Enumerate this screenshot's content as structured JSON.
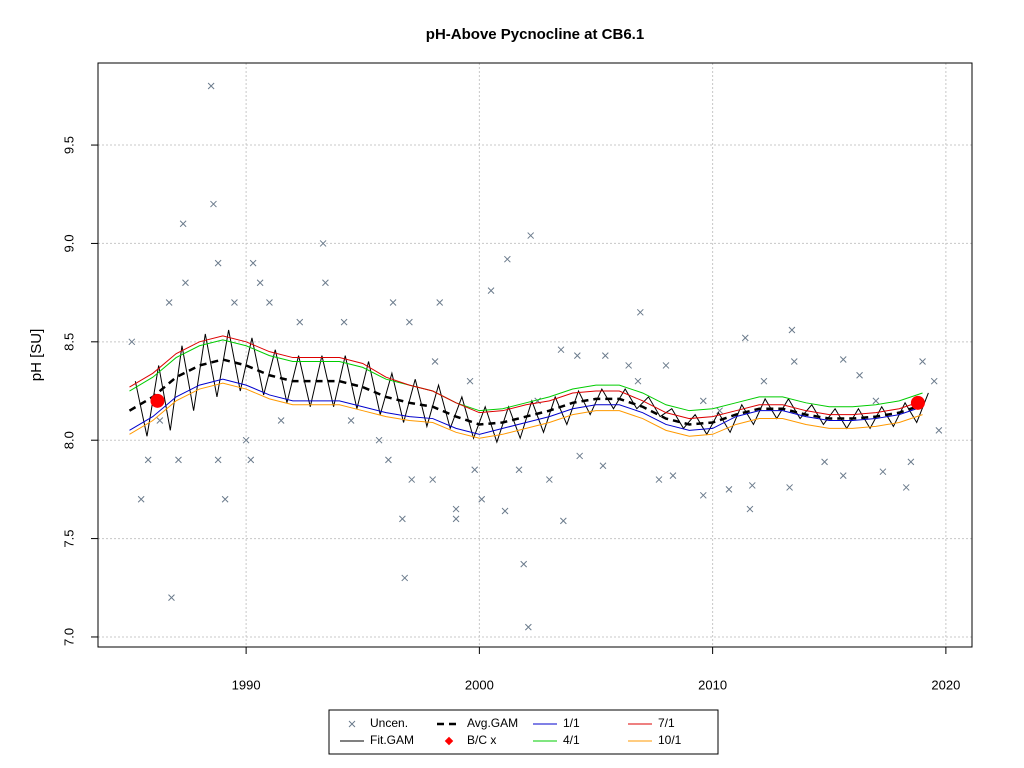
{
  "chart_data": {
    "type": "line",
    "title": "pH-Above Pycnocline at CB6.1",
    "y_label": "pH [SU]",
    "xlim": [
      1983.65,
      2021.12
    ],
    "ylim": [
      6.949,
      9.917
    ],
    "xticks": [
      1990,
      2000,
      2010,
      2020
    ],
    "yticks": [
      {
        "value": 7,
        "label": "7.0"
      },
      7.5,
      {
        "value": 8,
        "label": "8.0"
      },
      8.5,
      {
        "value": 9,
        "label": "9.0"
      },
      9.5
    ],
    "grid": true,
    "legend": "bottom",
    "x": [
      1985,
      1986,
      1987,
      1988,
      1989,
      1990,
      1991,
      1992,
      1993,
      1994,
      1995,
      1996,
      1997,
      1998,
      1999,
      2000,
      2001,
      2002,
      2003,
      2004,
      2005,
      2006,
      2007,
      2008,
      2009,
      2010,
      2011,
      2012,
      2013,
      2014,
      2015,
      2016,
      2017,
      2018,
      2019
    ],
    "series": [
      {
        "name": "Uncen.",
        "kind": "scatter",
        "marker": "x",
        "color": "#6b7b8c",
        "x": [
          1988.5,
          1988.6,
          1987.3,
          1993.3,
          2002.2,
          2001.2,
          1990.3,
          1988.8,
          1986.8,
          1996.8,
          2001.9,
          2002.1,
          1985.5,
          1989.1,
          1996.7,
          2003.6,
          1999.0,
          2011.6,
          2013.4,
          2006.9,
          2011.4,
          1985.1,
          1986.7,
          1987.4,
          1989.5,
          1990.6,
          1991.0,
          1992.3,
          1993.4,
          1994.2,
          1996.3,
          1997.0,
          1998.3,
          1998.1,
          1999.6,
          2000.5,
          2003.5,
          2004.2,
          2005.4,
          2006.4,
          2008.0,
          2009.6,
          2012.2,
          2013.5,
          2015.6,
          2016.3,
          2019.0,
          2019.5,
          1985.8,
          1987.1,
          1988.8,
          1990.0,
          1990.2,
          1995.7,
          1996.1,
          1997.1,
          1998.0,
          1999.0,
          1999.8,
          2000.1,
          2001.1,
          2001.7,
          2003.0,
          2004.3,
          2005.3,
          2007.7,
          2008.3,
          2009.6,
          2010.7,
          2011.7,
          2013.3,
          2014.8,
          2015.6,
          2017.3,
          2018.3,
          2018.5,
          2019.7,
          1986.3,
          1991.5,
          1994.5,
          2002.5,
          2006.8,
          2010.3,
          2017.0
        ],
        "values": [
          9.8,
          9.2,
          9.1,
          9.0,
          9.04,
          8.92,
          8.9,
          8.9,
          7.2,
          7.3,
          7.37,
          7.05,
          7.7,
          7.7,
          7.6,
          7.59,
          7.6,
          7.65,
          8.56,
          8.65,
          8.52,
          8.5,
          8.7,
          8.8,
          8.7,
          8.8,
          8.7,
          8.6,
          8.8,
          8.6,
          8.7,
          8.6,
          8.7,
          8.4,
          8.3,
          8.76,
          8.46,
          8.43,
          8.43,
          8.38,
          8.38,
          8.2,
          8.3,
          8.4,
          8.41,
          8.33,
          8.4,
          8.3,
          7.9,
          7.9,
          7.9,
          8.0,
          7.9,
          8.0,
          7.9,
          7.8,
          7.8,
          7.65,
          7.85,
          7.7,
          7.64,
          7.85,
          7.8,
          7.92,
          7.87,
          7.8,
          7.82,
          7.72,
          7.75,
          7.77,
          7.76,
          7.89,
          7.82,
          7.84,
          7.76,
          7.89,
          8.05,
          8.1,
          8.1,
          8.1,
          8.2,
          8.3,
          8.15,
          8.2
        ]
      },
      {
        "name": "Fit.GAM",
        "kind": "line",
        "color": "#000000",
        "width": 1,
        "x": [
          1985.25,
          1985.75,
          1986.25,
          1986.75,
          1987.25,
          1987.75,
          1988.25,
          1988.75,
          1989.25,
          1989.75,
          1990.25,
          1990.75,
          1991.25,
          1991.75,
          1992.25,
          1992.75,
          1993.25,
          1993.75,
          1994.25,
          1994.75,
          1995.25,
          1995.75,
          1996.25,
          1996.75,
          1997.25,
          1997.75,
          1998.25,
          1998.75,
          1999.25,
          1999.75,
          2000.25,
          2000.75,
          2001.25,
          2001.75,
          2002.25,
          2002.75,
          2003.25,
          2003.75,
          2004.25,
          2004.75,
          2005.25,
          2005.75,
          2006.25,
          2006.75,
          2007.25,
          2007.75,
          2008.25,
          2008.75,
          2009.25,
          2009.75,
          2010.25,
          2010.75,
          2011.25,
          2011.75,
          2012.25,
          2012.75,
          2013.25,
          2013.75,
          2014.25,
          2014.75,
          2015.25,
          2015.75,
          2016.25,
          2016.75,
          2017.25,
          2017.75,
          2018.25,
          2018.75,
          2019.25
        ],
        "values": [
          8.3,
          8.02,
          8.38,
          8.05,
          8.48,
          8.15,
          8.54,
          8.22,
          8.56,
          8.25,
          8.52,
          8.23,
          8.46,
          8.19,
          8.43,
          8.17,
          8.43,
          8.17,
          8.43,
          8.16,
          8.4,
          8.13,
          8.34,
          8.09,
          8.31,
          8.07,
          8.28,
          8.06,
          8.22,
          8.01,
          8.17,
          7.99,
          8.17,
          8.01,
          8.2,
          8.04,
          8.22,
          8.08,
          8.25,
          8.13,
          8.26,
          8.16,
          8.26,
          8.16,
          8.22,
          8.12,
          8.16,
          8.06,
          8.13,
          8.03,
          8.14,
          8.04,
          8.18,
          8.08,
          8.21,
          8.11,
          8.21,
          8.11,
          8.18,
          8.08,
          8.16,
          8.06,
          8.16,
          8.06,
          8.17,
          8.07,
          8.19,
          8.09,
          8.24
        ]
      },
      {
        "name": "Avg.GAM",
        "kind": "line",
        "color": "#000000",
        "width": 2.5,
        "dashed": true,
        "values": [
          8.15,
          8.22,
          8.32,
          8.38,
          8.41,
          8.38,
          8.33,
          8.3,
          8.3,
          8.3,
          8.27,
          8.22,
          8.19,
          8.17,
          8.12,
          8.08,
          8.09,
          8.12,
          8.15,
          8.19,
          8.21,
          8.21,
          8.17,
          8.11,
          8.08,
          8.09,
          8.13,
          8.16,
          8.16,
          8.13,
          8.11,
          8.11,
          8.12,
          8.14,
          8.18
        ]
      },
      {
        "name": "B/C x",
        "kind": "scatter",
        "marker": "dot",
        "color": "#ff0000",
        "x": [
          1986.2,
          2018.8
        ],
        "values": [
          8.2,
          8.19
        ]
      },
      {
        "name": "1/1",
        "kind": "line",
        "color": "#0000cc",
        "width": 1,
        "values": [
          8.05,
          8.12,
          8.22,
          8.28,
          8.31,
          8.28,
          8.23,
          8.2,
          8.2,
          8.2,
          8.17,
          8.14,
          8.12,
          8.11,
          8.06,
          8.03,
          8.06,
          8.09,
          8.12,
          8.16,
          8.18,
          8.18,
          8.14,
          8.08,
          8.05,
          8.06,
          8.12,
          8.15,
          8.15,
          8.12,
          8.1,
          8.1,
          8.11,
          8.13,
          8.17
        ]
      },
      {
        "name": "4/1",
        "kind": "line",
        "color": "#00cc00",
        "width": 1,
        "values": [
          8.25,
          8.32,
          8.42,
          8.48,
          8.51,
          8.48,
          8.43,
          8.4,
          8.4,
          8.4,
          8.37,
          8.31,
          8.28,
          8.25,
          8.19,
          8.15,
          8.16,
          8.19,
          8.22,
          8.26,
          8.28,
          8.28,
          8.24,
          8.18,
          8.15,
          8.16,
          8.19,
          8.22,
          8.22,
          8.19,
          8.17,
          8.17,
          8.18,
          8.2,
          8.24
        ]
      },
      {
        "name": "7/1",
        "kind": "line",
        "color": "#dd0000",
        "width": 1,
        "values": [
          8.27,
          8.34,
          8.44,
          8.5,
          8.53,
          8.5,
          8.45,
          8.42,
          8.42,
          8.42,
          8.39,
          8.32,
          8.28,
          8.25,
          8.19,
          8.14,
          8.15,
          8.18,
          8.2,
          8.24,
          8.25,
          8.25,
          8.2,
          8.14,
          8.11,
          8.12,
          8.15,
          8.18,
          8.18,
          8.15,
          8.13,
          8.13,
          8.14,
          8.16,
          8.2
        ]
      },
      {
        "name": "10/1",
        "kind": "line",
        "color": "#ff9900",
        "width": 1,
        "values": [
          8.03,
          8.1,
          8.2,
          8.26,
          8.29,
          8.26,
          8.21,
          8.18,
          8.18,
          8.18,
          8.15,
          8.12,
          8.1,
          8.09,
          8.04,
          8.01,
          8.03,
          8.06,
          8.09,
          8.13,
          8.15,
          8.15,
          8.11,
          8.05,
          8.02,
          8.03,
          8.08,
          8.11,
          8.11,
          8.08,
          8.06,
          8.06,
          8.07,
          8.09,
          8.13
        ]
      }
    ]
  }
}
